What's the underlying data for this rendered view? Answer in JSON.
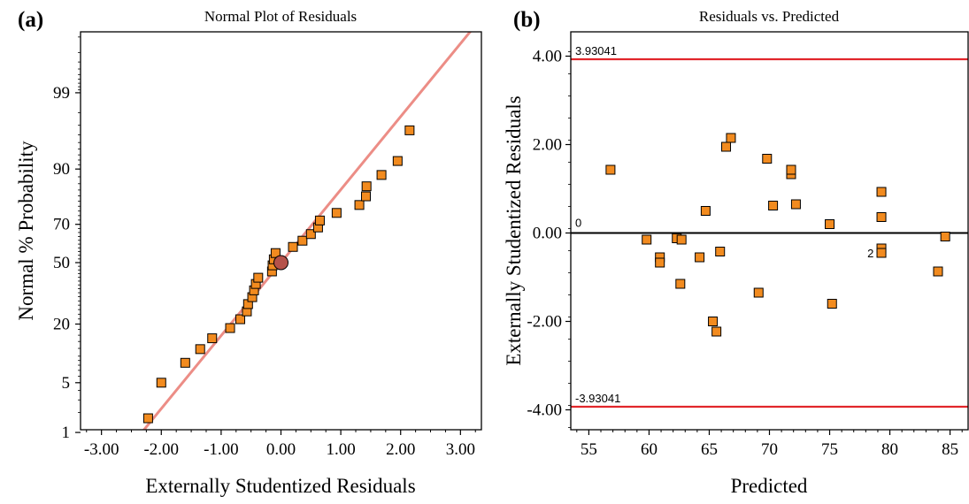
{
  "panels": {
    "a": {
      "label": "(a)",
      "title": "Normal Plot of Residuals",
      "xlabel": "Externally Studentized Residuals",
      "ylabel": "Normal % Probability"
    },
    "b": {
      "label": "(b)",
      "title": "Residuals vs. Predicted",
      "xlabel": "Predicted",
      "ylabel": "Externally Studentized Residuals"
    }
  },
  "chart_data": [
    {
      "type": "scatter",
      "title": "Normal Plot of Residuals",
      "xlabel": "Externally Studentized Residuals",
      "ylabel": "Normal % Probability",
      "xlim": [
        -3.35,
        3.35
      ],
      "y_scale": "normal-probability",
      "xticks": [
        -3,
        -2,
        -1,
        0,
        1,
        2,
        3
      ],
      "xtick_labels": [
        "-3.00",
        "-2.00",
        "-1.00",
        "0.00",
        "1.00",
        "2.00",
        "3.00"
      ],
      "yticks": [
        1,
        5,
        20,
        50,
        70,
        90,
        99
      ],
      "ytick_labels": [
        "1",
        "5",
        "20",
        "50",
        "70",
        "90",
        "99"
      ],
      "points": [
        {
          "x": -2.22,
          "y": 1.65
        },
        {
          "x": -2.0,
          "y": 5.0
        },
        {
          "x": -1.6,
          "y": 8.5
        },
        {
          "x": -1.35,
          "y": 11.8
        },
        {
          "x": -1.15,
          "y": 15.0
        },
        {
          "x": -0.85,
          "y": 18.5
        },
        {
          "x": -0.68,
          "y": 21.9
        },
        {
          "x": -0.57,
          "y": 25.2
        },
        {
          "x": -0.55,
          "y": 28.5
        },
        {
          "x": -0.48,
          "y": 31.8
        },
        {
          "x": -0.45,
          "y": 35.2
        },
        {
          "x": -0.42,
          "y": 38.5
        },
        {
          "x": -0.38,
          "y": 41.8
        },
        {
          "x": -0.15,
          "y": 45.2
        },
        {
          "x": -0.14,
          "y": 48.5
        },
        {
          "x": -0.12,
          "y": 51.8
        },
        {
          "x": -0.09,
          "y": 55.2
        },
        {
          "x": 0.2,
          "y": 58.5
        },
        {
          "x": 0.36,
          "y": 61.8
        },
        {
          "x": 0.5,
          "y": 65.2
        },
        {
          "x": 0.62,
          "y": 68.5
        },
        {
          "x": 0.65,
          "y": 71.8
        },
        {
          "x": 0.93,
          "y": 75.2
        },
        {
          "x": 1.31,
          "y": 78.5
        },
        {
          "x": 1.42,
          "y": 81.8
        },
        {
          "x": 1.43,
          "y": 85.2
        },
        {
          "x": 1.68,
          "y": 88.5
        },
        {
          "x": 1.95,
          "y": 91.8
        },
        {
          "x": 2.15,
          "y": 96.5
        }
      ],
      "mean_marker": {
        "x": 0.0,
        "y": 50
      },
      "reference_line": {
        "x": [
          -3.35,
          3.35
        ],
        "slope_per_unit_z": 1.0
      },
      "colors": {
        "points": "#f28b1f",
        "mean_marker": "#b5524a",
        "reference_line": "#ec8d86"
      }
    },
    {
      "type": "scatter",
      "title": "Residuals vs. Predicted",
      "xlabel": "Predicted",
      "ylabel": "Externally Studentized Residuals",
      "xlim": [
        53.5,
        86.5
      ],
      "ylim": [
        -4.45,
        4.55
      ],
      "xticks": [
        55,
        60,
        65,
        70,
        75,
        80,
        85
      ],
      "xtick_labels": [
        "55",
        "60",
        "65",
        "70",
        "75",
        "80",
        "85"
      ],
      "yticks": [
        -4,
        -2,
        0,
        2,
        4
      ],
      "ytick_labels": [
        "-4.00",
        "-2.00",
        "0.00",
        "2.00",
        "4.00"
      ],
      "limits": [
        {
          "value": 3.93041,
          "label": "3.93041",
          "color": "#e1262b"
        },
        {
          "value": -3.93041,
          "label": "-3.93041",
          "color": "#e1262b"
        }
      ],
      "zero_line": {
        "value": 0,
        "label": "0",
        "color": "#000000"
      },
      "points": [
        {
          "x": 56.8,
          "y": 1.43
        },
        {
          "x": 59.8,
          "y": -0.15
        },
        {
          "x": 60.9,
          "y": -0.55
        },
        {
          "x": 60.9,
          "y": -0.67
        },
        {
          "x": 62.3,
          "y": -0.12
        },
        {
          "x": 62.7,
          "y": -0.15
        },
        {
          "x": 62.6,
          "y": -1.15
        },
        {
          "x": 64.2,
          "y": -0.55
        },
        {
          "x": 64.7,
          "y": 0.5
        },
        {
          "x": 65.3,
          "y": -2.0
        },
        {
          "x": 65.6,
          "y": -2.23
        },
        {
          "x": 65.9,
          "y": -0.42
        },
        {
          "x": 66.4,
          "y": 1.95
        },
        {
          "x": 66.8,
          "y": 2.15
        },
        {
          "x": 69.1,
          "y": -1.35
        },
        {
          "x": 69.8,
          "y": 1.68
        },
        {
          "x": 70.3,
          "y": 0.62
        },
        {
          "x": 71.8,
          "y": 1.33
        },
        {
          "x": 71.8,
          "y": 1.43
        },
        {
          "x": 72.2,
          "y": 0.65
        },
        {
          "x": 75.0,
          "y": 0.2
        },
        {
          "x": 75.2,
          "y": -1.6
        },
        {
          "x": 79.3,
          "y": 0.93
        },
        {
          "x": 79.3,
          "y": 0.36
        },
        {
          "x": 79.3,
          "y": -0.35
        },
        {
          "x": 79.3,
          "y": -0.45
        },
        {
          "x": 84.0,
          "y": -0.87
        },
        {
          "x": 84.6,
          "y": -0.08
        }
      ],
      "annotations": [
        {
          "text": "2",
          "x": 78.4,
          "y": -0.45
        }
      ],
      "colors": {
        "points": "#f28b1f"
      }
    }
  ]
}
